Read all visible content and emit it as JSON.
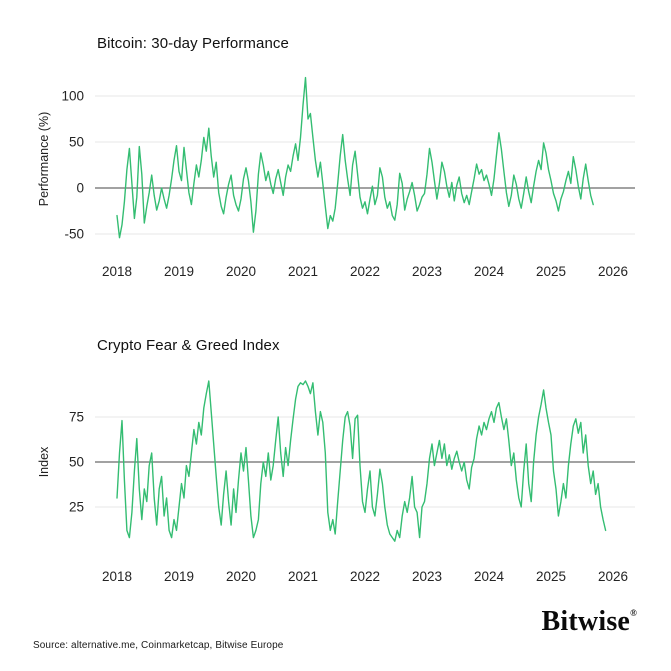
{
  "page": {
    "background": "#ffffff"
  },
  "colors": {
    "line_green": "#34bd72",
    "gridline": "#e7e7e7",
    "baseline": "#454545",
    "text": "#1a1a1a"
  },
  "footer": {
    "source_text": "Source: alternative.me, Coinmarketcap, Bitwise Europe"
  },
  "branding": {
    "logo_text": "Bitwise",
    "registered_mark": "®"
  },
  "chart_data": [
    {
      "type": "line",
      "title": "Bitcoin: 30-day Performance",
      "ylabel": "Performance (%)",
      "yticks": [
        100,
        50,
        0,
        -50
      ],
      "baseline_value": 0,
      "xticks": [
        2018,
        2019,
        2020,
        2021,
        2022,
        2023,
        2024,
        2025,
        2026
      ],
      "xlim": [
        2017.8,
        2026.3
      ],
      "ylim": [
        -62,
        128
      ],
      "grid": true,
      "x_start": 2018.0,
      "x_end": 2025.68,
      "values": [
        -30,
        -54,
        -40,
        -15,
        20,
        43,
        5,
        -33,
        -10,
        45,
        15,
        -38,
        -20,
        -5,
        14,
        -8,
        -24,
        -14,
        0,
        -12,
        -22,
        -8,
        10,
        30,
        46,
        18,
        8,
        44,
        20,
        -5,
        -18,
        5,
        25,
        12,
        30,
        55,
        40,
        65,
        35,
        12,
        28,
        -5,
        -20,
        -28,
        -10,
        4,
        14,
        -8,
        -18,
        -25,
        -12,
        10,
        22,
        8,
        -15,
        -48,
        -25,
        15,
        38,
        25,
        8,
        18,
        4,
        -6,
        10,
        20,
        6,
        -8,
        12,
        25,
        18,
        35,
        48,
        30,
        55,
        90,
        120,
        75,
        81,
        55,
        30,
        12,
        28,
        5,
        -20,
        -44,
        -30,
        -36,
        -22,
        5,
        35,
        58,
        30,
        10,
        -8,
        25,
        40,
        15,
        -10,
        -22,
        -15,
        -28,
        -12,
        2,
        -18,
        -8,
        22,
        12,
        -10,
        -22,
        -15,
        -30,
        -35,
        -18,
        16,
        5,
        -24,
        -12,
        -4,
        6,
        -8,
        -25,
        -18,
        -10,
        -6,
        15,
        43,
        28,
        8,
        -12,
        5,
        28,
        18,
        2,
        -10,
        6,
        -14,
        3,
        12,
        -6,
        -16,
        -8,
        -18,
        -4,
        10,
        26,
        15,
        20,
        8,
        14,
        4,
        -8,
        10,
        35,
        60,
        42,
        18,
        -5,
        -20,
        -8,
        14,
        4,
        -12,
        -22,
        -6,
        12,
        -4,
        -16,
        2,
        18,
        30,
        20,
        49,
        38,
        20,
        8,
        -6,
        -14,
        -25,
        -12,
        -4,
        8,
        18,
        5,
        34,
        20,
        2,
        -12,
        10,
        26,
        8,
        -8,
        -18
      ]
    },
    {
      "type": "line",
      "title": "Crypto Fear & Greed Index",
      "ylabel": "Index",
      "yticks": [
        75,
        50,
        25
      ],
      "baseline_value": 50,
      "xticks": [
        2018,
        2019,
        2020,
        2021,
        2022,
        2023,
        2024,
        2025,
        2026
      ],
      "xlim": [
        2017.8,
        2026.3
      ],
      "ylim": [
        0,
        100
      ],
      "grid": true,
      "x_start": 2018.0,
      "x_end": 2025.88,
      "values": [
        30,
        55,
        73,
        40,
        12,
        8,
        22,
        45,
        63,
        35,
        18,
        35,
        28,
        48,
        55,
        30,
        15,
        35,
        42,
        20,
        30,
        12,
        8,
        18,
        12,
        25,
        38,
        30,
        48,
        42,
        55,
        68,
        60,
        72,
        65,
        80,
        88,
        95,
        78,
        60,
        42,
        25,
        15,
        32,
        45,
        28,
        15,
        35,
        22,
        40,
        55,
        45,
        58,
        40,
        20,
        8,
        12,
        18,
        38,
        50,
        42,
        55,
        40,
        48,
        62,
        75,
        55,
        42,
        58,
        48,
        62,
        74,
        85,
        92,
        94,
        93,
        95,
        92,
        88,
        94,
        78,
        65,
        78,
        72,
        55,
        22,
        12,
        18,
        10,
        28,
        45,
        62,
        75,
        78,
        70,
        52,
        74,
        76,
        48,
        28,
        22,
        35,
        45,
        25,
        20,
        32,
        46,
        38,
        25,
        15,
        10,
        8,
        6,
        12,
        8,
        20,
        28,
        22,
        30,
        42,
        25,
        22,
        8,
        25,
        28,
        38,
        52,
        60,
        48,
        55,
        62,
        52,
        60,
        48,
        54,
        46,
        52,
        56,
        50,
        45,
        50,
        40,
        35,
        47,
        52,
        63,
        70,
        65,
        72,
        68,
        74,
        78,
        72,
        80,
        83,
        75,
        68,
        74,
        62,
        48,
        55,
        40,
        30,
        25,
        45,
        60,
        38,
        28,
        50,
        65,
        75,
        82,
        90,
        80,
        72,
        65,
        45,
        35,
        20,
        28,
        38,
        30,
        48,
        60,
        70,
        74,
        66,
        72,
        55,
        65,
        48,
        38,
        45,
        32,
        38,
        25,
        18,
        12
      ]
    }
  ]
}
